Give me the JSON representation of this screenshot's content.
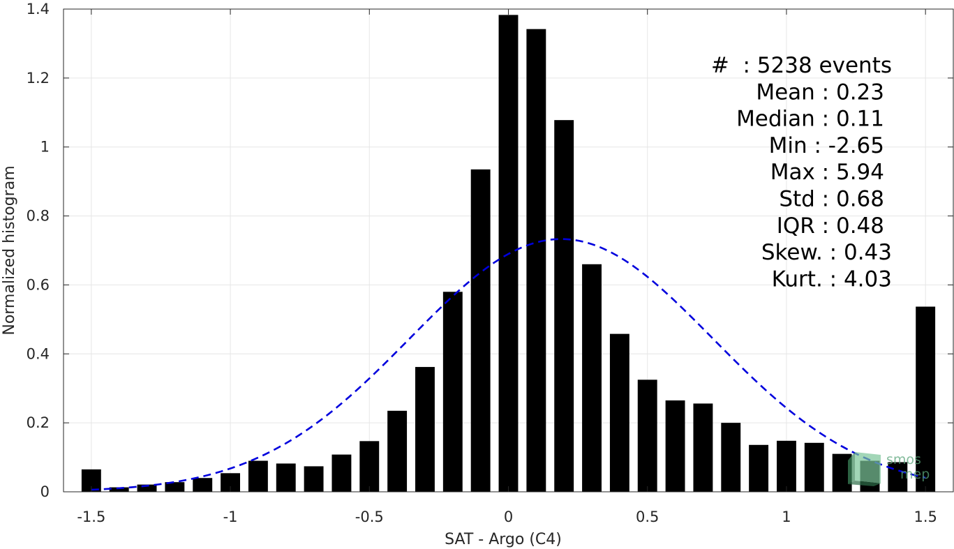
{
  "chart_data": {
    "type": "bar",
    "xlabel": "SAT - Argo (C4)",
    "ylabel": "Normalized histogram",
    "xlim": [
      -1.6,
      1.6
    ],
    "ylim": [
      0,
      1.4
    ],
    "xticks": [
      -1.5,
      -1,
      -0.5,
      0,
      0.5,
      1,
      1.5
    ],
    "xtick_labels": [
      "-1.5",
      "-1",
      "-0.5",
      "0",
      "0.5",
      "1",
      "1.5"
    ],
    "yticks": [
      0,
      0.2,
      0.4,
      0.6,
      0.8,
      1,
      1.2,
      1.4
    ],
    "ytick_labels": [
      "0",
      "0.2",
      "0.4",
      "0.6",
      "0.8",
      "1",
      "1.2",
      "1.4"
    ],
    "grid": true,
    "bar_color": "#000000",
    "bar_width": 0.07,
    "bars": [
      {
        "x": -1.5,
        "y": 0.065
      },
      {
        "x": -1.4,
        "y": 0.013
      },
      {
        "x": -1.3,
        "y": 0.021
      },
      {
        "x": -1.2,
        "y": 0.028
      },
      {
        "x": -1.1,
        "y": 0.04
      },
      {
        "x": -1.0,
        "y": 0.054
      },
      {
        "x": -0.9,
        "y": 0.09
      },
      {
        "x": -0.8,
        "y": 0.082
      },
      {
        "x": -0.7,
        "y": 0.074
      },
      {
        "x": -0.6,
        "y": 0.108
      },
      {
        "x": -0.5,
        "y": 0.147
      },
      {
        "x": -0.4,
        "y": 0.235
      },
      {
        "x": -0.3,
        "y": 0.362
      },
      {
        "x": -0.2,
        "y": 0.58
      },
      {
        "x": -0.1,
        "y": 0.935
      },
      {
        "x": 0.0,
        "y": 1.383
      },
      {
        "x": 0.1,
        "y": 1.342
      },
      {
        "x": 0.2,
        "y": 1.078
      },
      {
        "x": 0.3,
        "y": 0.66
      },
      {
        "x": 0.4,
        "y": 0.458
      },
      {
        "x": 0.5,
        "y": 0.325
      },
      {
        "x": 0.6,
        "y": 0.265
      },
      {
        "x": 0.7,
        "y": 0.256
      },
      {
        "x": 0.8,
        "y": 0.2
      },
      {
        "x": 0.9,
        "y": 0.136
      },
      {
        "x": 1.0,
        "y": 0.148
      },
      {
        "x": 1.1,
        "y": 0.142
      },
      {
        "x": 1.2,
        "y": 0.11
      },
      {
        "x": 1.3,
        "y": 0.09
      },
      {
        "x": 1.4,
        "y": 0.086
      },
      {
        "x": 1.5,
        "y": 0.537
      }
    ],
    "fit_curve": {
      "type": "gaussian",
      "style": "dashed",
      "color": "#0000dd",
      "mean": 0.19,
      "std": 0.545,
      "peak": 0.733,
      "x_range": [
        -1.5,
        1.5
      ]
    },
    "stats_box": {
      "placement": "top-right",
      "lines": [
        "#  : 5238 events",
        "Mean : 0.23",
        "Median : 0.11",
        "Min : -2.65",
        "Max : 5.94",
        "Std : 0.68",
        "IQR : 0.48",
        "Skew. : 0.43",
        "Kurt. : 4.03"
      ]
    }
  },
  "logo": {
    "line1": "smos",
    "line2": "mep",
    "color": "#5aa57a"
  }
}
